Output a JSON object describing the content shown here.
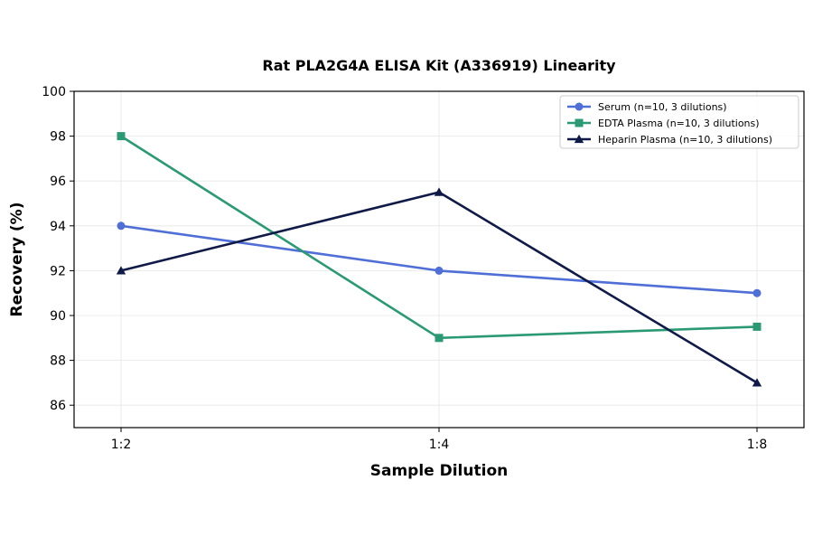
{
  "chart_data": {
    "type": "line",
    "title": "Rat PLA2G4A ELISA Kit (A336919) Linearity",
    "xlabel": "Sample Dilution",
    "ylabel": "Recovery (%)",
    "categories": [
      "1:2",
      "1:4",
      "1:8"
    ],
    "ylim": [
      85,
      100
    ],
    "yticks": [
      "86",
      "88",
      "90",
      "92",
      "94",
      "96",
      "98",
      "100"
    ],
    "grid": true,
    "legend_position": "top-right",
    "series": [
      {
        "name": "Serum (n=10, 3 dilutions)",
        "values": [
          94,
          92,
          91
        ],
        "color": "#4f6fd6",
        "marker": "circle"
      },
      {
        "name": "EDTA Plasma (n=10, 3 dilutions)",
        "values": [
          98,
          89,
          89.5
        ],
        "color": "#2b9a74",
        "marker": "square"
      },
      {
        "name": "Heparin Plasma (n=10, 3 dilutions)",
        "values": [
          92,
          95.5,
          87
        ],
        "color": "#0f1a47",
        "marker": "triangle"
      }
    ]
  }
}
